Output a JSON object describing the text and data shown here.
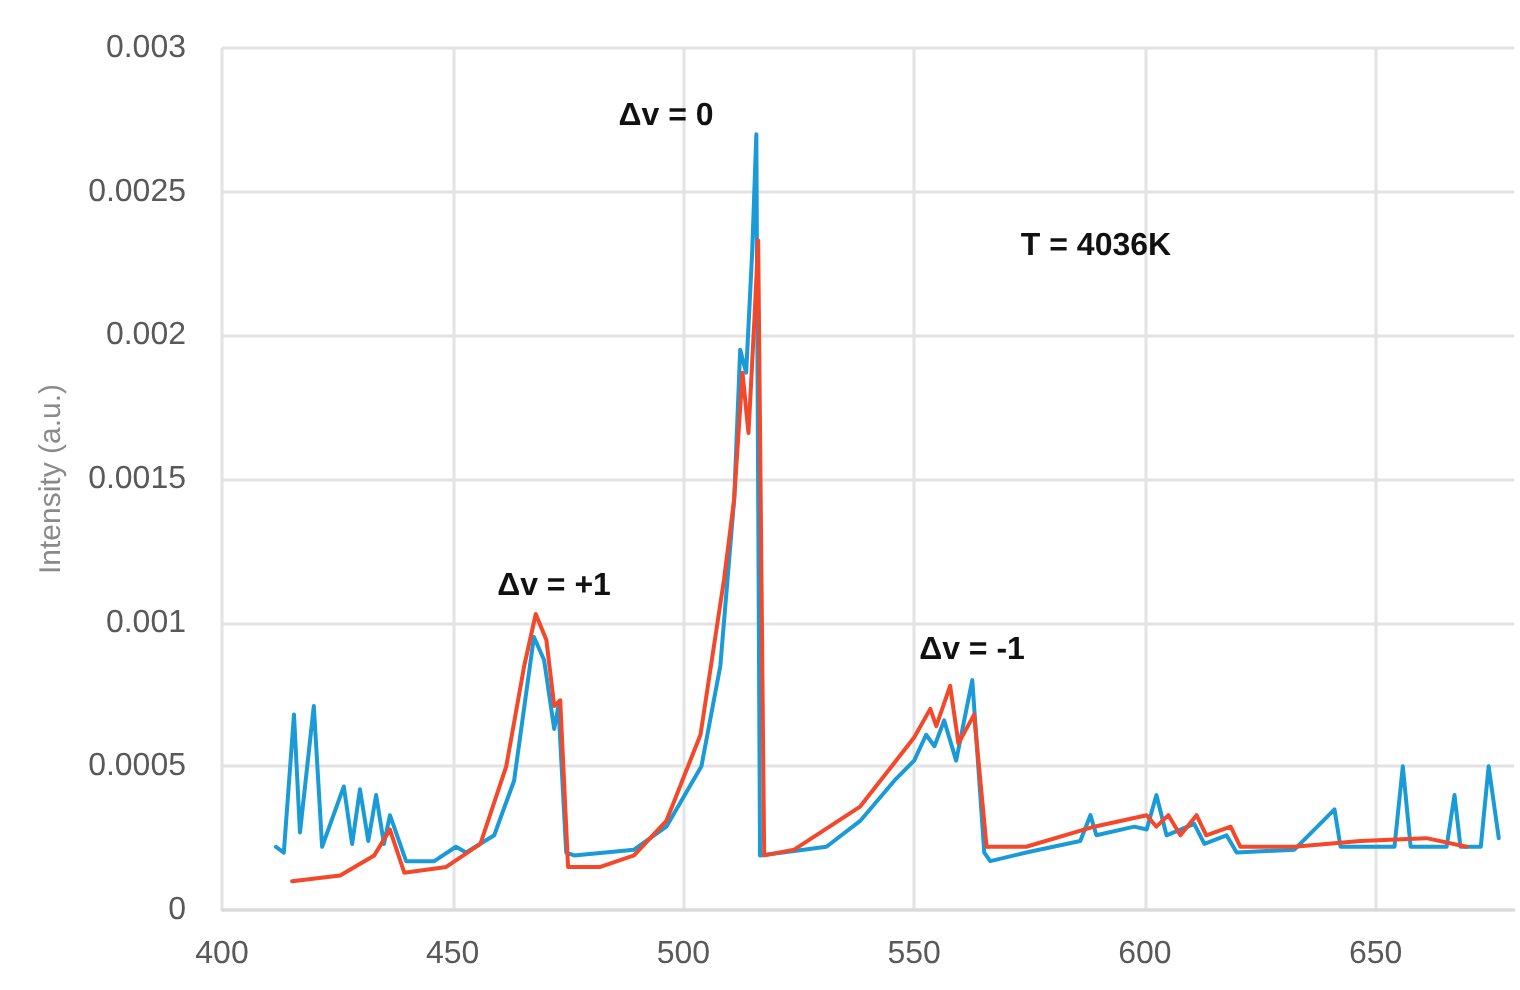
{
  "chart_data": {
    "type": "line",
    "ylabel": "Intensity (a.u.)",
    "xlim": [
      400,
      680
    ],
    "xticks": [
      400,
      450,
      500,
      550,
      600,
      650
    ],
    "ylim": [
      0,
      0.003
    ],
    "yticks": [
      0,
      0.0005,
      0.001,
      0.0015,
      0.002,
      0.0025,
      0.003
    ],
    "grid": true,
    "marker": "none",
    "line_style": "solid",
    "annotations": [
      "Δv = 0",
      "Δv = +1",
      "Δv = -1",
      "T = 4036K"
    ],
    "series": [
      {
        "color": "#1a9ad6",
        "x": [
          411.7,
          413.4,
          415.6,
          416.9,
          419.9,
          421.7,
          426.4,
          428.2,
          429.9,
          431.7,
          433.4,
          435.1,
          436.4,
          439.9,
          446,
          450.7,
          452.9,
          459,
          463.3,
          467.6,
          469.8,
          472,
          472.9,
          474.6,
          476.3,
          489.3,
          496.3,
          503.9,
          508,
          511,
          512.3,
          513.6,
          514.9,
          515.8,
          516.6,
          531,
          538.3,
          545.7,
          550,
          552.6,
          554.4,
          556.5,
          559.1,
          562.6,
          565.2,
          566.5,
          574.3,
          586,
          588.2,
          589.5,
          597.7,
          600.4,
          602.5,
          604.7,
          610.7,
          612.9,
          617.7,
          619.9,
          632.4,
          641.1,
          642.4,
          654.1,
          655.9,
          657.6,
          665.4,
          667.1,
          668.4,
          672.8,
          674.5,
          676.7
        ],
        "values": [
          0.00022,
          0.0002,
          0.00068,
          0.00027,
          0.00071,
          0.00022,
          0.00043,
          0.00023,
          0.00042,
          0.00024,
          0.0004,
          0.00023,
          0.00033,
          0.00017,
          0.00017,
          0.00022,
          0.0002,
          0.00026,
          0.00045,
          0.00095,
          0.00087,
          0.00063,
          0.00071,
          0.0002,
          0.00019,
          0.00021,
          0.00029,
          0.0005,
          0.00085,
          0.00143,
          0.00195,
          0.00187,
          0.00229,
          0.0027,
          0.00019,
          0.00022,
          0.00031,
          0.00045,
          0.00052,
          0.00061,
          0.00057,
          0.00066,
          0.00052,
          0.0008,
          0.0002,
          0.00017,
          0.0002,
          0.00024,
          0.00033,
          0.00026,
          0.00029,
          0.00028,
          0.0004,
          0.00026,
          0.0003,
          0.00023,
          0.00026,
          0.0002,
          0.00021,
          0.00035,
          0.00022,
          0.00022,
          0.0005,
          0.00022,
          0.00022,
          0.0004,
          0.00022,
          0.00022,
          0.0005,
          0.00025
        ]
      },
      {
        "color": "#f4482b",
        "x": [
          415.2,
          425.6,
          433,
          436.4,
          439.5,
          448.6,
          456,
          461.6,
          465.5,
          468,
          470.3,
          472,
          473.3,
          475,
          482,
          489.3,
          496.3,
          503.7,
          508.8,
          511,
          512.8,
          514.1,
          515.4,
          516.2,
          517.5,
          524,
          538.3,
          546.1,
          550,
          553.5,
          554.8,
          557.8,
          559.6,
          563,
          565.7,
          574.3,
          589,
          600.4,
          602.5,
          605.1,
          607.7,
          611.2,
          613.3,
          618.6,
          620.7,
          632.4,
          646.7,
          661,
          669.7
        ],
        "values": [
          0.0001,
          0.00012,
          0.00019,
          0.00028,
          0.00013,
          0.00015,
          0.00023,
          0.0005,
          0.00085,
          0.00103,
          0.00094,
          0.00071,
          0.00073,
          0.00015,
          0.00015,
          0.00019,
          0.00031,
          0.00061,
          0.00115,
          0.00143,
          0.00187,
          0.00166,
          0.00206,
          0.00233,
          0.00019,
          0.00021,
          0.00036,
          0.00052,
          0.0006,
          0.0007,
          0.00064,
          0.00078,
          0.00058,
          0.00068,
          0.00022,
          0.00022,
          0.00029,
          0.00033,
          0.00029,
          0.00033,
          0.00026,
          0.00033,
          0.00026,
          0.00029,
          0.00022,
          0.00022,
          0.00024,
          0.00025,
          0.00022
        ]
      }
    ]
  }
}
